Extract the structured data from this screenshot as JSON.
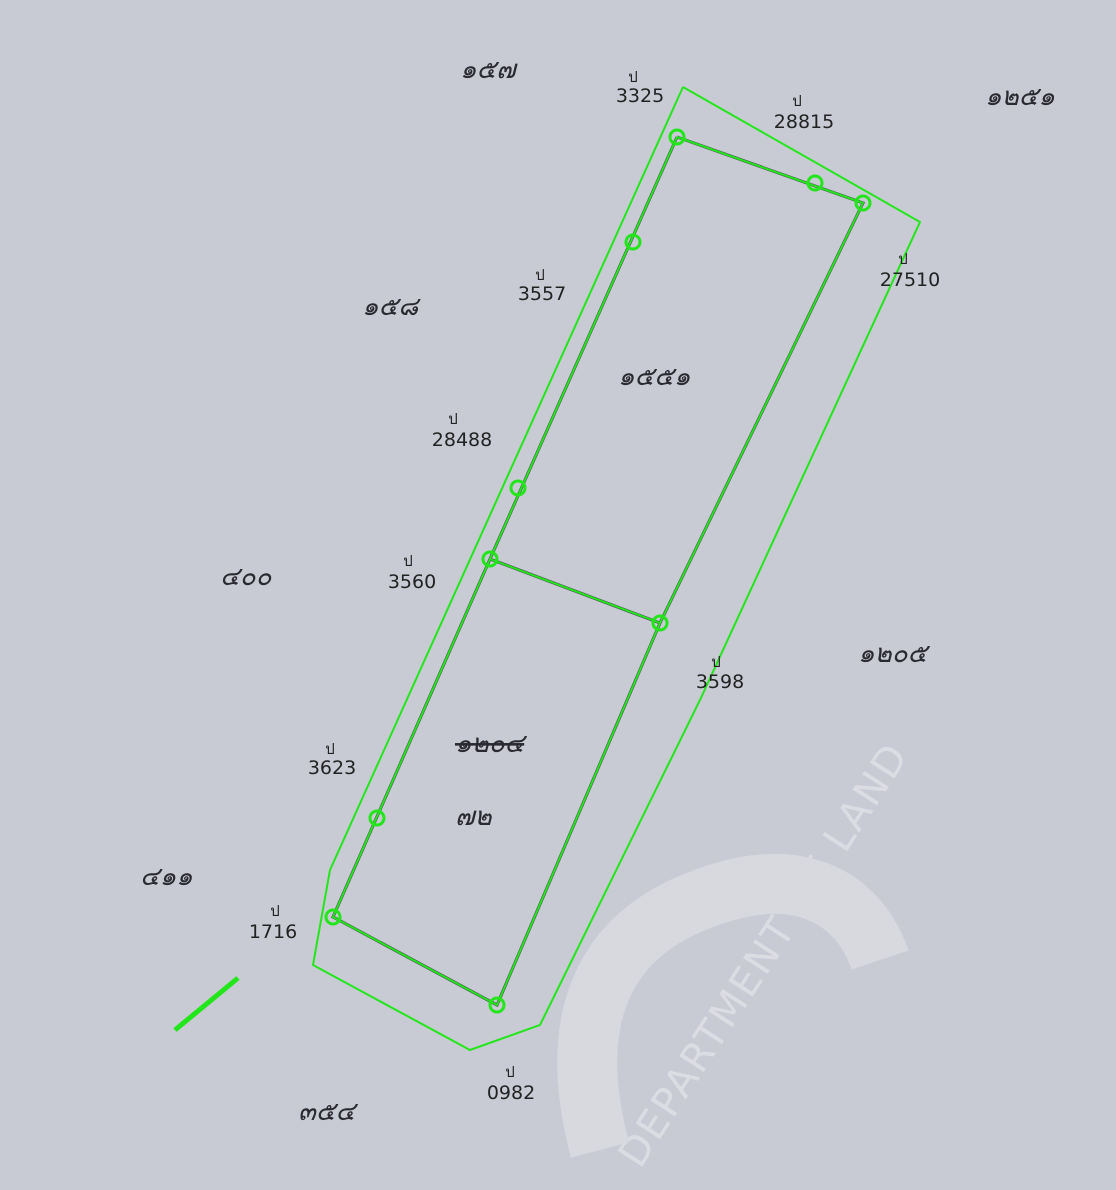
{
  "parcel_numbers": [
    "๑๕๗",
    "๑๒๕๑",
    "๑๕๘",
    "๑๕๕๑",
    "๔๐๐",
    "๑๒๐๕",
    "๑๒๐๔",
    "๗๒",
    "๔๑๑",
    "๓๕๔"
  ],
  "markers": [
    {
      "prefix": "ป",
      "number": "3325"
    },
    {
      "prefix": "ป",
      "number": "28815"
    },
    {
      "prefix": "ป",
      "number": "27510"
    },
    {
      "prefix": "ป",
      "number": "3557"
    },
    {
      "prefix": "ป",
      "number": "28488"
    },
    {
      "prefix": "ป",
      "number": "3560"
    },
    {
      "prefix": "ป",
      "number": "3598"
    },
    {
      "prefix": "ป",
      "number": "3623"
    },
    {
      "prefix": "ป",
      "number": "1716"
    },
    {
      "prefix": "ป",
      "number": "0982"
    }
  ],
  "watermark": "DEPARTMENT OF LAND"
}
